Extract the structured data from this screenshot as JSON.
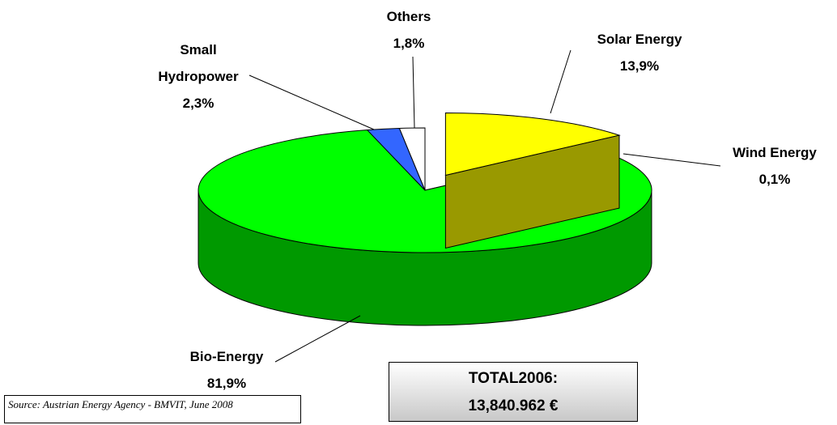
{
  "chart_data": {
    "type": "pie3d",
    "categories": [
      "Solar Energy",
      "Wind Energy",
      "Bio-Energy",
      "Small Hydropower",
      "Others"
    ],
    "values": [
      13.9,
      0.1,
      81.9,
      2.3,
      1.8
    ],
    "value_labels": [
      "13,9%",
      "0,1%",
      "81,9%",
      "2,3%",
      "1,8%"
    ],
    "colors": [
      "#ffff00",
      "#808000",
      "#00ff00",
      "#3366ff",
      "#ffffff"
    ],
    "explode": [
      true,
      false,
      false,
      false,
      false
    ],
    "annotations": {
      "total_title": "TOTAL2006:",
      "total_value": "13,840.962 €",
      "source": "Source: Austrian Energy Agency - BMVIT, June 2008"
    }
  }
}
